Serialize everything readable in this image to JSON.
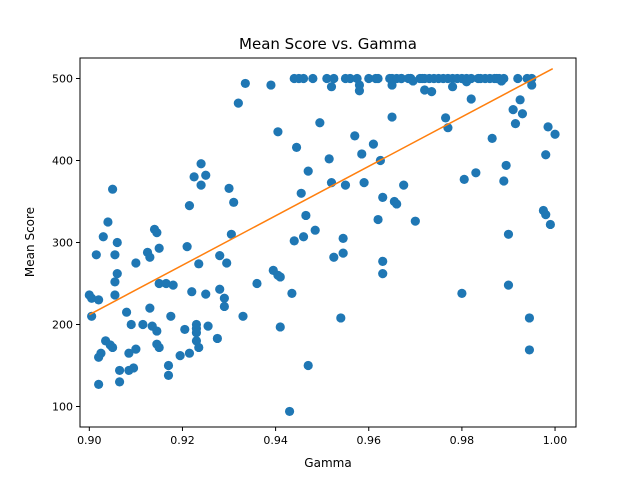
{
  "chart_data": {
    "type": "scatter",
    "title": "Mean Score vs. Gamma",
    "xlabel": "Gamma",
    "ylabel": "Mean Score",
    "xlim": [
      0.898,
      1.0045
    ],
    "ylim": [
      75,
      525
    ],
    "xticks": [
      "0.90",
      "0.92",
      "0.94",
      "0.96",
      "0.98",
      "1.00"
    ],
    "yticks": [
      "100",
      "200",
      "300",
      "400",
      "500"
    ],
    "grid": false,
    "legend": "none",
    "colors": {
      "points": "#1f77b4",
      "fit_line": "#ff7f0e"
    },
    "fit_line": {
      "x": [
        0.9,
        0.9995
      ],
      "y": [
        212,
        512
      ]
    },
    "points": [
      [
        0.9,
        236
      ],
      [
        0.9005,
        232
      ],
      [
        0.9015,
        285
      ],
      [
        0.9005,
        210
      ],
      [
        0.902,
        230
      ],
      [
        0.9025,
        165
      ],
      [
        0.902,
        160
      ],
      [
        0.902,
        127
      ],
      [
        0.903,
        307
      ],
      [
        0.9035,
        180
      ],
      [
        0.904,
        325
      ],
      [
        0.9045,
        175
      ],
      [
        0.905,
        365
      ],
      [
        0.905,
        172
      ],
      [
        0.9055,
        252
      ],
      [
        0.9055,
        236
      ],
      [
        0.9055,
        285
      ],
      [
        0.906,
        262
      ],
      [
        0.906,
        300
      ],
      [
        0.9065,
        144
      ],
      [
        0.9065,
        130
      ],
      [
        0.908,
        215
      ],
      [
        0.9085,
        165
      ],
      [
        0.9085,
        144
      ],
      [
        0.909,
        200
      ],
      [
        0.9095,
        147
      ],
      [
        0.91,
        275
      ],
      [
        0.91,
        170
      ],
      [
        0.9115,
        200
      ],
      [
        0.9125,
        288
      ],
      [
        0.913,
        282
      ],
      [
        0.913,
        220
      ],
      [
        0.9135,
        198
      ],
      [
        0.914,
        316
      ],
      [
        0.9145,
        312
      ],
      [
        0.9145,
        176
      ],
      [
        0.9145,
        192
      ],
      [
        0.915,
        293
      ],
      [
        0.915,
        250
      ],
      [
        0.915,
        172
      ],
      [
        0.9165,
        250
      ],
      [
        0.917,
        150
      ],
      [
        0.917,
        138
      ],
      [
        0.918,
        248
      ],
      [
        0.9175,
        210
      ],
      [
        0.9195,
        162
      ],
      [
        0.9205,
        194
      ],
      [
        0.921,
        295
      ],
      [
        0.9215,
        345
      ],
      [
        0.9215,
        165
      ],
      [
        0.922,
        240
      ],
      [
        0.9225,
        380
      ],
      [
        0.923,
        200
      ],
      [
        0.923,
        195
      ],
      [
        0.923,
        190
      ],
      [
        0.923,
        180
      ],
      [
        0.9235,
        172
      ],
      [
        0.9235,
        274
      ],
      [
        0.924,
        370
      ],
      [
        0.924,
        396
      ],
      [
        0.925,
        382
      ],
      [
        0.925,
        237
      ],
      [
        0.9255,
        198
      ],
      [
        0.9275,
        183
      ],
      [
        0.928,
        243
      ],
      [
        0.928,
        284
      ],
      [
        0.929,
        232
      ],
      [
        0.929,
        222
      ],
      [
        0.9295,
        275
      ],
      [
        0.93,
        366
      ],
      [
        0.9305,
        310
      ],
      [
        0.931,
        349
      ],
      [
        0.932,
        470
      ],
      [
        0.933,
        210
      ],
      [
        0.9335,
        494
      ],
      [
        0.936,
        250
      ],
      [
        0.939,
        492
      ],
      [
        0.9395,
        266
      ],
      [
        0.9405,
        260
      ],
      [
        0.9405,
        435
      ],
      [
        0.941,
        258
      ],
      [
        0.941,
        197
      ],
      [
        0.943,
        94
      ],
      [
        0.9435,
        238
      ],
      [
        0.944,
        500
      ],
      [
        0.944,
        302
      ],
      [
        0.9445,
        416
      ],
      [
        0.945,
        500
      ],
      [
        0.9455,
        360
      ],
      [
        0.946,
        500
      ],
      [
        0.946,
        307
      ],
      [
        0.9465,
        333
      ],
      [
        0.947,
        387
      ],
      [
        0.947,
        150
      ],
      [
        0.948,
        500
      ],
      [
        0.9485,
        315
      ],
      [
        0.9495,
        446
      ],
      [
        0.951,
        500
      ],
      [
        0.9515,
        402
      ],
      [
        0.9525,
        500
      ],
      [
        0.952,
        490
      ],
      [
        0.952,
        373
      ],
      [
        0.9525,
        282
      ],
      [
        0.9545,
        305
      ],
      [
        0.9545,
        287
      ],
      [
        0.954,
        208
      ],
      [
        0.955,
        370
      ],
      [
        0.955,
        500
      ],
      [
        0.956,
        500
      ],
      [
        0.957,
        430
      ],
      [
        0.9575,
        500
      ],
      [
        0.958,
        492
      ],
      [
        0.958,
        485
      ],
      [
        0.9585,
        408
      ],
      [
        0.959,
        373
      ],
      [
        0.96,
        500
      ],
      [
        0.961,
        420
      ],
      [
        0.9615,
        500
      ],
      [
        0.962,
        500
      ],
      [
        0.962,
        328
      ],
      [
        0.9625,
        400
      ],
      [
        0.963,
        277
      ],
      [
        0.963,
        262
      ],
      [
        0.963,
        355
      ],
      [
        0.9645,
        500
      ],
      [
        0.965,
        492
      ],
      [
        0.965,
        500
      ],
      [
        0.965,
        453
      ],
      [
        0.9655,
        350
      ],
      [
        0.966,
        347
      ],
      [
        0.966,
        500
      ],
      [
        0.967,
        500
      ],
      [
        0.967,
        500
      ],
      [
        0.9675,
        370
      ],
      [
        0.9685,
        500
      ],
      [
        0.969,
        500
      ],
      [
        0.969,
        500
      ],
      [
        0.9695,
        497
      ],
      [
        0.97,
        326
      ],
      [
        0.971,
        500
      ],
      [
        0.9715,
        500
      ],
      [
        0.972,
        500
      ],
      [
        0.972,
        486
      ],
      [
        0.973,
        500
      ],
      [
        0.9735,
        484
      ],
      [
        0.974,
        500
      ],
      [
        0.975,
        500
      ],
      [
        0.976,
        500
      ],
      [
        0.9765,
        452
      ],
      [
        0.977,
        440
      ],
      [
        0.977,
        500
      ],
      [
        0.978,
        490
      ],
      [
        0.978,
        500
      ],
      [
        0.979,
        500
      ],
      [
        0.98,
        500
      ],
      [
        0.98,
        238
      ],
      [
        0.981,
        500
      ],
      [
        0.9805,
        377
      ],
      [
        0.981,
        496
      ],
      [
        0.982,
        500
      ],
      [
        0.982,
        475
      ],
      [
        0.983,
        385
      ],
      [
        0.9835,
        500
      ],
      [
        0.984,
        500
      ],
      [
        0.985,
        500
      ],
      [
        0.986,
        500
      ],
      [
        0.9865,
        427
      ],
      [
        0.987,
        500
      ],
      [
        0.9875,
        500
      ],
      [
        0.988,
        500
      ],
      [
        0.9885,
        497
      ],
      [
        0.989,
        375
      ],
      [
        0.989,
        500
      ],
      [
        0.9895,
        394
      ],
      [
        0.99,
        310
      ],
      [
        0.99,
        248
      ],
      [
        0.991,
        462
      ],
      [
        0.9915,
        445
      ],
      [
        0.992,
        500
      ],
      [
        0.9925,
        474
      ],
      [
        0.993,
        457
      ],
      [
        0.994,
        500
      ],
      [
        0.9945,
        208
      ],
      [
        0.9945,
        169
      ],
      [
        0.995,
        492
      ],
      [
        0.995,
        500
      ],
      [
        0.9975,
        339
      ],
      [
        0.998,
        334
      ],
      [
        0.998,
        407
      ],
      [
        0.9985,
        441
      ],
      [
        0.999,
        322
      ],
      [
        1.0,
        432
      ]
    ]
  }
}
